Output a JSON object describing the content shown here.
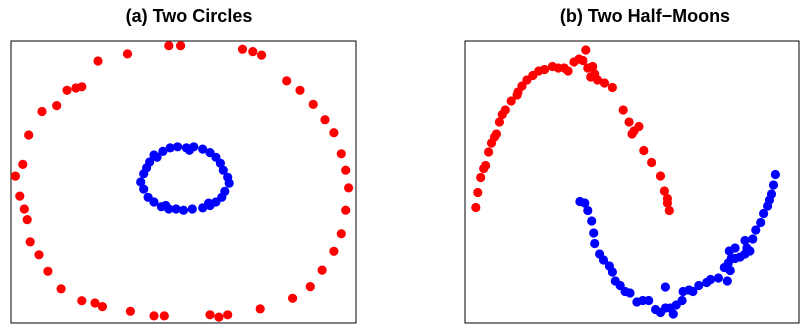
{
  "colors": {
    "series_red": "#ff0000",
    "series_blue": "#0000ff",
    "frame": "#000000",
    "background": "#ffffff"
  },
  "chart_data": [
    {
      "type": "scatter",
      "title": "(a) Two Circles",
      "xlabel": "",
      "ylabel": "",
      "xlim": [
        -1.17,
        1.17
      ],
      "ylim": [
        -1.2,
        1.2
      ],
      "grid": false,
      "axes_ticks": false,
      "series": [
        {
          "color": "#ff0000",
          "points": [
            [
              -0.1,
              1.16
            ],
            [
              -0.02,
              1.16
            ],
            [
              0.4,
              1.13
            ],
            [
              0.47,
              1.11
            ],
            [
              0.53,
              1.08
            ],
            [
              -0.38,
              1.09
            ],
            [
              -0.58,
              1.03
            ],
            [
              -0.69,
              0.81
            ],
            [
              -0.73,
              0.8
            ],
            [
              -0.79,
              0.78
            ],
            [
              -0.86,
              0.65
            ],
            [
              -0.96,
              0.6
            ],
            [
              -1.05,
              0.4
            ],
            [
              -1.09,
              0.15
            ],
            [
              -1.14,
              0.05
            ],
            [
              -1.11,
              -0.12
            ],
            [
              -1.08,
              -0.23
            ],
            [
              -1.06,
              -0.32
            ],
            [
              -1.04,
              -0.51
            ],
            [
              -0.98,
              -0.62
            ],
            [
              -0.92,
              -0.76
            ],
            [
              -0.83,
              -0.91
            ],
            [
              -0.69,
              -1.01
            ],
            [
              -0.6,
              -1.03
            ],
            [
              -0.55,
              -1.06
            ],
            [
              -0.36,
              -1.1
            ],
            [
              -0.2,
              -1.14
            ],
            [
              -0.13,
              -1.14
            ],
            [
              0.18,
              -1.13
            ],
            [
              0.24,
              -1.15
            ],
            [
              0.3,
              -1.13
            ],
            [
              0.52,
              -1.08
            ],
            [
              0.74,
              -0.99
            ],
            [
              0.86,
              -0.89
            ],
            [
              0.94,
              -0.75
            ],
            [
              1.02,
              -0.59
            ],
            [
              1.07,
              -0.44
            ],
            [
              1.1,
              -0.24
            ],
            [
              1.12,
              -0.05
            ],
            [
              1.1,
              0.1
            ],
            [
              1.07,
              0.24
            ],
            [
              1.02,
              0.42
            ],
            [
              0.96,
              0.53
            ],
            [
              0.88,
              0.66
            ],
            [
              0.79,
              0.78
            ],
            [
              0.7,
              0.86
            ]
          ]
        },
        {
          "color": "#0000ff",
          "points": [
            [
              -0.23,
              0.17
            ],
            [
              -0.2,
              0.23
            ],
            [
              -0.14,
              0.26
            ],
            [
              -0.09,
              0.29
            ],
            [
              -0.04,
              0.3
            ],
            [
              0.02,
              0.29
            ],
            [
              0.07,
              0.3
            ],
            [
              0.13,
              0.28
            ],
            [
              0.18,
              0.25
            ],
            [
              0.22,
              0.21
            ],
            [
              0.25,
              0.16
            ],
            [
              0.27,
              0.1
            ],
            [
              0.3,
              0.04
            ],
            [
              0.31,
              -0.01
            ],
            [
              0.28,
              -0.08
            ],
            [
              0.26,
              -0.13
            ],
            [
              0.22,
              -0.17
            ],
            [
              0.18,
              -0.2
            ],
            [
              0.13,
              -0.22
            ],
            [
              0.06,
              -0.23
            ],
            [
              0.0,
              -0.24
            ],
            [
              -0.05,
              -0.23
            ],
            [
              -0.1,
              -0.23
            ],
            [
              -0.15,
              -0.21
            ],
            [
              -0.2,
              -0.17
            ],
            [
              -0.24,
              -0.13
            ],
            [
              -0.27,
              -0.06
            ],
            [
              -0.29,
              0.0
            ],
            [
              -0.27,
              0.07
            ],
            [
              -0.25,
              0.12
            ],
            [
              -0.18,
              0.21
            ],
            [
              0.04,
              0.27
            ],
            [
              0.17,
              -0.18
            ],
            [
              -0.12,
              -0.2
            ]
          ]
        }
      ]
    },
    {
      "type": "scatter",
      "title": "(b) Two Half−Moons",
      "xlabel": "",
      "ylabel": "",
      "xlim": [
        -1.2,
        2.2
      ],
      "ylim": [
        -0.7,
        1.18
      ],
      "grid": false,
      "axes_ticks": false,
      "series": [
        {
          "color": "#ff0000",
          "points": [
            [
              -1.09,
              0.07
            ],
            [
              -1.07,
              0.17
            ],
            [
              -1.04,
              0.27
            ],
            [
              -1.01,
              0.33
            ],
            [
              -0.96,
              0.44
            ],
            [
              -0.93,
              0.5
            ],
            [
              -0.9,
              0.54
            ],
            [
              -0.85,
              0.64
            ],
            [
              -0.82,
              0.69
            ],
            [
              -0.79,
              0.72
            ],
            [
              -0.73,
              0.78
            ],
            [
              -0.67,
              0.82
            ],
            [
              -0.62,
              0.88
            ],
            [
              -0.57,
              0.92
            ],
            [
              -0.51,
              0.95
            ],
            [
              -0.45,
              0.98
            ],
            [
              -0.39,
              0.99
            ],
            [
              -0.31,
              1.01
            ],
            [
              -0.25,
              1.0
            ],
            [
              -0.19,
              1.0
            ],
            [
              -0.15,
              0.98
            ],
            [
              -0.09,
              1.04
            ],
            [
              -0.04,
              1.06
            ],
            [
              0.0,
              1.05
            ],
            [
              0.03,
              1.12
            ],
            [
              0.05,
              1.0
            ],
            [
              0.1,
              1.01
            ],
            [
              0.12,
              0.96
            ],
            [
              0.15,
              0.92
            ],
            [
              0.22,
              0.9
            ],
            [
              0.3,
              0.87
            ],
            [
              0.41,
              0.72
            ],
            [
              0.47,
              0.64
            ],
            [
              0.5,
              0.56
            ],
            [
              0.57,
              0.61
            ],
            [
              0.62,
              0.45
            ],
            [
              0.7,
              0.37
            ],
            [
              0.79,
              0.28
            ],
            [
              0.83,
              0.18
            ],
            [
              0.86,
              0.13
            ],
            [
              0.88,
              0.05
            ],
            [
              0.86,
              0.1
            ],
            [
              -0.88,
              0.56
            ],
            [
              -0.66,
              0.84
            ],
            [
              0.08,
              0.94
            ],
            [
              0.52,
              0.58
            ],
            [
              -0.99,
              0.35
            ]
          ]
        },
        {
          "color": "#0000ff",
          "points": [
            [
              -0.03,
              0.11
            ],
            [
              0.02,
              0.1
            ],
            [
              0.05,
              0.05
            ],
            [
              0.09,
              -0.02
            ],
            [
              0.11,
              -0.1
            ],
            [
              0.12,
              -0.17
            ],
            [
              0.17,
              -0.24
            ],
            [
              0.21,
              -0.28
            ],
            [
              0.27,
              -0.32
            ],
            [
              0.3,
              -0.36
            ],
            [
              0.33,
              -0.42
            ],
            [
              0.38,
              -0.45
            ],
            [
              0.43,
              -0.49
            ],
            [
              0.48,
              -0.5
            ],
            [
              0.55,
              -0.56
            ],
            [
              0.61,
              -0.55
            ],
            [
              0.67,
              -0.55
            ],
            [
              0.74,
              -0.61
            ],
            [
              0.79,
              -0.63
            ],
            [
              0.84,
              -0.6
            ],
            [
              0.89,
              -0.6
            ],
            [
              0.95,
              -0.58
            ],
            [
              1.01,
              -0.55
            ],
            [
              1.08,
              -0.48
            ],
            [
              1.12,
              -0.49
            ],
            [
              1.18,
              -0.45
            ],
            [
              1.26,
              -0.43
            ],
            [
              1.3,
              -0.41
            ],
            [
              1.38,
              -0.4
            ],
            [
              1.44,
              -0.33
            ],
            [
              1.48,
              -0.3
            ],
            [
              1.51,
              -0.27
            ],
            [
              1.55,
              -0.27
            ],
            [
              1.6,
              -0.26
            ],
            [
              1.65,
              -0.24
            ],
            [
              1.67,
              -0.2
            ],
            [
              1.73,
              -0.14
            ],
            [
              1.76,
              -0.08
            ],
            [
              1.81,
              -0.03
            ],
            [
              1.84,
              0.03
            ],
            [
              1.88,
              0.08
            ],
            [
              1.9,
              0.12
            ],
            [
              1.92,
              0.16
            ],
            [
              1.94,
              0.22
            ],
            [
              1.96,
              0.29
            ],
            [
              1.5,
              -0.35
            ],
            [
              1.7,
              -0.22
            ],
            [
              1.47,
              -0.42
            ],
            [
              1.02,
              -0.49
            ],
            [
              0.84,
              -0.46
            ],
            [
              1.55,
              -0.2
            ],
            [
              0.92,
              -0.64
            ],
            [
              1.65,
              -0.15
            ],
            [
              1.49,
              -0.22
            ]
          ]
        }
      ]
    }
  ]
}
